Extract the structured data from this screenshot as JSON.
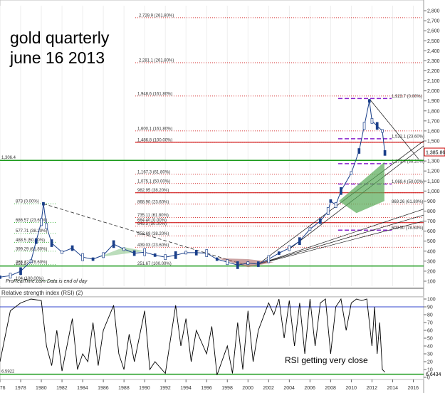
{
  "title_line1": "gold quarterly",
  "title_line2": "june 16 2013",
  "source_note": "ProRealTime.com  Data is end of day",
  "rsi_header": "Relative strength index (RSI) (2)",
  "rsi_annotation": "RSI getting very close",
  "chart_data": {
    "type": "candlestick",
    "price_axis": {
      "ticks": [
        100,
        200,
        300,
        400,
        500,
        600,
        700,
        800,
        900,
        1000,
        1100,
        1200,
        1300,
        1400,
        1500,
        1600,
        1700,
        1800,
        1900,
        2000,
        2100,
        2200,
        2300,
        2400,
        2500,
        2600,
        2700,
        2800
      ],
      "labels": [
        "100",
        "200",
        "300",
        "400",
        "500",
        "600",
        "700",
        "800",
        "900",
        "1,000",
        "1,100",
        "1,200",
        "1,300",
        "1,400",
        "1,500",
        "1,600",
        "1,700",
        "1,800",
        "1,900",
        "2,000",
        "2,100",
        "2,200",
        "2,300",
        "2,400",
        "2,500",
        "2,600",
        "2,700",
        "2,800"
      ],
      "range": [
        50,
        2850
      ]
    },
    "time_axis": {
      "labels": [
        "1976",
        "1978",
        "1980",
        "1982",
        "1984",
        "1986",
        "1988",
        "1990",
        "1992",
        "1994",
        "1996",
        "1998",
        "2000",
        "2002",
        "2004",
        "2006",
        "2008",
        "2010",
        "2012",
        "2014",
        "2016"
      ],
      "range": [
        1976,
        2017
      ]
    },
    "last_price": "1,385.86",
    "left_level_label": "1,306.4",
    "price_path": [
      [
        1976,
        140
      ],
      [
        1977,
        155
      ],
      [
        1978,
        200
      ],
      [
        1979,
        300
      ],
      [
        1979.5,
        500
      ],
      [
        1980,
        690
      ],
      [
        1980.2,
        873
      ],
      [
        1980.5,
        650
      ],
      [
        1981,
        480
      ],
      [
        1982,
        390
      ],
      [
        1983,
        430
      ],
      [
        1984,
        340
      ],
      [
        1985,
        320
      ],
      [
        1986,
        360
      ],
      [
        1987,
        470
      ],
      [
        1988,
        420
      ],
      [
        1989,
        380
      ],
      [
        1990,
        390
      ],
      [
        1991,
        360
      ],
      [
        1992,
        340
      ],
      [
        1993,
        360
      ],
      [
        1994,
        385
      ],
      [
        1995,
        385
      ],
      [
        1996,
        380
      ],
      [
        1997,
        320
      ],
      [
        1998,
        290
      ],
      [
        1999,
        260
      ],
      [
        2000,
        280
      ],
      [
        2001,
        270
      ],
      [
        2002,
        320
      ],
      [
        2003,
        380
      ],
      [
        2004,
        430
      ],
      [
        2005,
        500
      ],
      [
        2006,
        620
      ],
      [
        2007,
        700
      ],
      [
        2007.75,
        800
      ],
      [
        2008,
        900
      ],
      [
        2008.5,
        860
      ],
      [
        2009,
        1000
      ],
      [
        2010,
        1180
      ],
      [
        2010.75,
        1400
      ],
      [
        2011.25,
        1650
      ],
      [
        2011.75,
        1900
      ],
      [
        2012,
        1700
      ],
      [
        2012.5,
        1650
      ],
      [
        2013,
        1600
      ],
      [
        2013.25,
        1380
      ]
    ],
    "fibonacci_levels": [
      {
        "price": 2729.9,
        "label": "2,729.9 (261.80%)",
        "color": "#cc0000"
      },
      {
        "price": 2281.1,
        "label": "2,281.1 (261.80%)",
        "color": "#cc0000"
      },
      {
        "price": 1948.6,
        "label": "1,948.6 (161.80%)",
        "color": "#cc0000"
      },
      {
        "price": 1600.1,
        "label": "1,600.1 (161.80%)",
        "color": "#cc0000"
      },
      {
        "price": 1486.8,
        "label": "1,486.8 (100.00%)",
        "color": "#cc0000"
      },
      {
        "price": 1167.3,
        "label": "1,167.3 (61.80%)",
        "color": "#cc0000"
      },
      {
        "price": 1075.1,
        "label": "1,075.1 (50.00%)",
        "color": "#cc0000"
      },
      {
        "price": 982.95,
        "label": "982.95 (38.20%)",
        "color": "#cc0000"
      },
      {
        "price": 868.9,
        "label": "868.90 (23.60%)",
        "color": "#cc0000"
      },
      {
        "price": 684.4,
        "label": "684.40 (0.00%)",
        "color": "#cc0000"
      },
      {
        "price": 735.11,
        "label": "735.11 (61.80%)",
        "color": "#cc0000"
      },
      {
        "price": 649.5,
        "label": "649.5 (50.00%)",
        "color": "#cc0000"
      },
      {
        "price": 552.69,
        "label": "552.69 (38.20%)",
        "color": "#cc0000"
      },
      {
        "price": 439.03,
        "label": "439.03 (23.60%)",
        "color": "#cc0000"
      },
      {
        "price": 251.67,
        "label": "251.67 (100.00%)",
        "color": "#cc0000"
      }
    ],
    "right_fib_labels": [
      {
        "price": 1923.7,
        "label": "1,923.7 (0.00%)"
      },
      {
        "price": 1522.1,
        "label": "1,522.1 (23.60%)"
      },
      {
        "price": 1273.4,
        "label": "1,273.4 (38.20%)"
      },
      {
        "price": 1069.4,
        "label": "1,069.4 (50.00%)"
      },
      {
        "price": 869.26,
        "label": "869.26 (61.80%)"
      },
      {
        "price": 609.3,
        "label": "609.30 (78.60%)"
      }
    ],
    "left_fib_labels": [
      {
        "price": 873,
        "label": "873 (0.00%)"
      },
      {
        "price": 686.57,
        "label": "686.57 (23.60%)"
      },
      {
        "price": 577.71,
        "label": "577.71 (38.20%)"
      },
      {
        "price": 488.5,
        "label": "488.5 (50.00%)"
      },
      {
        "price": 399.29,
        "label": "399.29 (61.80%)"
      },
      {
        "price": 265.12,
        "label": "265.12 (78.60%)"
      },
      {
        "price": 104,
        "label": "104 (100.00%)"
      },
      {
        "price": 251.5,
        "label": "251.5"
      }
    ],
    "rsi": {
      "period": 2,
      "axis_ticks": [
        0,
        10,
        20,
        30,
        40,
        50,
        60,
        70,
        80,
        90,
        100
      ],
      "upper_line": 90,
      "lower_line": 4,
      "left_value_label": "6.5922",
      "last_value_label": "6.6434",
      "values": [
        [
          1976,
          20
        ],
        [
          1977,
          85
        ],
        [
          1978,
          95
        ],
        [
          1979,
          100
        ],
        [
          1980,
          98
        ],
        [
          1980.5,
          40
        ],
        [
          1981,
          15
        ],
        [
          1981.5,
          60
        ],
        [
          1982,
          8
        ],
        [
          1983,
          75
        ],
        [
          1983.5,
          10
        ],
        [
          1984,
          30
        ],
        [
          1984.5,
          20
        ],
        [
          1985,
          70
        ],
        [
          1985.5,
          15
        ],
        [
          1986,
          60
        ],
        [
          1987,
          92
        ],
        [
          1987.5,
          30
        ],
        [
          1988,
          10
        ],
        [
          1988.5,
          55
        ],
        [
          1989,
          20
        ],
        [
          1990,
          85
        ],
        [
          1990.5,
          10
        ],
        [
          1991,
          20
        ],
        [
          1992,
          5
        ],
        [
          1993,
          92
        ],
        [
          1993.5,
          40
        ],
        [
          1994,
          75
        ],
        [
          1994.5,
          20
        ],
        [
          1995,
          60
        ],
        [
          1996,
          30
        ],
        [
          1996.5,
          65
        ],
        [
          1997,
          3
        ],
        [
          1998,
          40
        ],
        [
          1998.5,
          5
        ],
        [
          1999,
          70
        ],
        [
          1999.5,
          10
        ],
        [
          2000,
          85
        ],
        [
          2000.5,
          20
        ],
        [
          2001,
          60
        ],
        [
          2002,
          95
        ],
        [
          2002.5,
          80
        ],
        [
          2003,
          100
        ],
        [
          2003.5,
          50
        ],
        [
          2004,
          98
        ],
        [
          2004.5,
          40
        ],
        [
          2005,
          95
        ],
        [
          2005.5,
          30
        ],
        [
          2006,
          100
        ],
        [
          2006.5,
          40
        ],
        [
          2007,
          95
        ],
        [
          2007.5,
          100
        ],
        [
          2008,
          30
        ],
        [
          2008.5,
          90
        ],
        [
          2009,
          100
        ],
        [
          2009.5,
          60
        ],
        [
          2010,
          95
        ],
        [
          2010.5,
          100
        ],
        [
          2011,
          98
        ],
        [
          2011.5,
          100
        ],
        [
          2012,
          40
        ],
        [
          2012.25,
          90
        ],
        [
          2012.5,
          30
        ],
        [
          2012.75,
          70
        ],
        [
          2013,
          10
        ],
        [
          2013.25,
          6.64
        ]
      ]
    }
  }
}
